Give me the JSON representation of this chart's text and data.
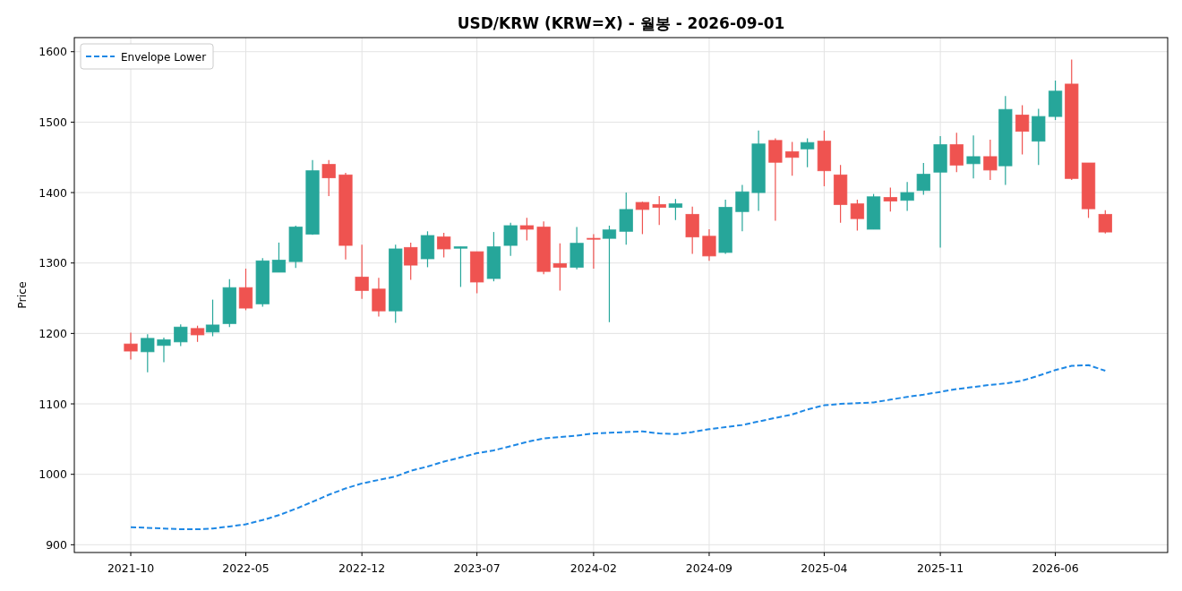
{
  "chart_data": {
    "type": "candlestick",
    "title": "USD/KRW (KRW=X) - 월봉 - 2026-09-01",
    "ylabel": "Price",
    "x": [
      "2021-10",
      "2021-11",
      "2021-12",
      "2022-01",
      "2022-02",
      "2022-03",
      "2022-04",
      "2022-05",
      "2022-06",
      "2022-07",
      "2022-08",
      "2022-09",
      "2022-10",
      "2022-11",
      "2022-12",
      "2023-01",
      "2023-02",
      "2023-03",
      "2023-04",
      "2023-05",
      "2023-06",
      "2023-07",
      "2023-08",
      "2023-09",
      "2023-10",
      "2023-11",
      "2023-12",
      "2024-01",
      "2024-02",
      "2024-03",
      "2024-04",
      "2024-05",
      "2024-06",
      "2024-07",
      "2024-08",
      "2024-09",
      "2024-10",
      "2024-11",
      "2024-12",
      "2025-01",
      "2025-02",
      "2025-03",
      "2025-04",
      "2025-05",
      "2025-06",
      "2025-07",
      "2025-08",
      "2025-09",
      "2025-10",
      "2025-11",
      "2025-12",
      "2026-01",
      "2026-02",
      "2026-03",
      "2026-04",
      "2026-05",
      "2026-06",
      "2026-07",
      "2026-08",
      "2026-09"
    ],
    "ohlc": [
      [
        1185,
        1201,
        1163,
        1175
      ],
      [
        1174,
        1199,
        1145,
        1193
      ],
      [
        1183,
        1194,
        1159,
        1191
      ],
      [
        1188,
        1213,
        1182,
        1209
      ],
      [
        1207,
        1211,
        1188,
        1198
      ],
      [
        1202,
        1248,
        1196,
        1212
      ],
      [
        1214,
        1277,
        1209,
        1265
      ],
      [
        1265,
        1292,
        1233,
        1236
      ],
      [
        1242,
        1307,
        1238,
        1303
      ],
      [
        1287,
        1329,
        1287,
        1304
      ],
      [
        1302,
        1353,
        1293,
        1351
      ],
      [
        1341,
        1446,
        1340,
        1431
      ],
      [
        1440,
        1446,
        1395,
        1421
      ],
      [
        1425,
        1428,
        1305,
        1325
      ],
      [
        1280,
        1326,
        1249,
        1261
      ],
      [
        1263,
        1279,
        1224,
        1232
      ],
      [
        1232,
        1326,
        1215,
        1320
      ],
      [
        1322,
        1329,
        1276,
        1297
      ],
      [
        1306,
        1345,
        1294,
        1339
      ],
      [
        1337,
        1343,
        1308,
        1320
      ],
      [
        1321,
        1323,
        1266,
        1323
      ],
      [
        1316,
        1316,
        1257,
        1273
      ],
      [
        1278,
        1344,
        1274,
        1323
      ],
      [
        1325,
        1357,
        1310,
        1353
      ],
      [
        1353,
        1364,
        1332,
        1348
      ],
      [
        1351,
        1359,
        1284,
        1288
      ],
      [
        1299,
        1328,
        1261,
        1294
      ],
      [
        1294,
        1351,
        1291,
        1328
      ],
      [
        1335,
        1341,
        1292,
        1334
      ],
      [
        1335,
        1353,
        1216,
        1347
      ],
      [
        1345,
        1400,
        1326,
        1376
      ],
      [
        1386,
        1387,
        1341,
        1376
      ],
      [
        1383,
        1395,
        1354,
        1379
      ],
      [
        1379,
        1391,
        1361,
        1384
      ],
      [
        1369,
        1380,
        1313,
        1337
      ],
      [
        1338,
        1348,
        1303,
        1310
      ],
      [
        1315,
        1390,
        1313,
        1379
      ],
      [
        1373,
        1411,
        1345,
        1401
      ],
      [
        1400,
        1488,
        1374,
        1469
      ],
      [
        1474,
        1477,
        1360,
        1443
      ],
      [
        1458,
        1472,
        1424,
        1450
      ],
      [
        1462,
        1477,
        1436,
        1471
      ],
      [
        1473,
        1488,
        1409,
        1431
      ],
      [
        1425,
        1439,
        1357,
        1383
      ],
      [
        1384,
        1390,
        1346,
        1363
      ],
      [
        1348,
        1398,
        1348,
        1394
      ],
      [
        1393,
        1407,
        1373,
        1388
      ],
      [
        1389,
        1415,
        1374,
        1400
      ],
      [
        1403,
        1442,
        1397,
        1426
      ],
      [
        1429,
        1480,
        1322,
        1468
      ],
      [
        1468,
        1485,
        1429,
        1439
      ],
      [
        1441,
        1481,
        1420,
        1451
      ],
      [
        1451,
        1475,
        1418,
        1432
      ],
      [
        1438,
        1537,
        1411,
        1518
      ],
      [
        1510,
        1524,
        1454,
        1487
      ],
      [
        1473,
        1519,
        1439,
        1508
      ],
      [
        1508,
        1559,
        1503,
        1544
      ],
      [
        1554,
        1589,
        1418,
        1420
      ],
      [
        1442,
        1442,
        1364,
        1377
      ],
      [
        1369,
        1375,
        1342,
        1344
      ]
    ],
    "colors": [
      "#ef5350",
      "#26a69a",
      "#26a69a",
      "#26a69a",
      "#ef5350",
      "#26a69a",
      "#26a69a",
      "#ef5350",
      "#26a69a",
      "#26a69a",
      "#26a69a",
      "#26a69a",
      "#ef5350",
      "#ef5350",
      "#ef5350",
      "#ef5350",
      "#26a69a",
      "#ef5350",
      "#26a69a",
      "#ef5350",
      "#26a69a",
      "#ef5350",
      "#26a69a",
      "#26a69a",
      "#ef5350",
      "#ef5350",
      "#ef5350",
      "#26a69a",
      "#ef5350",
      "#26a69a",
      "#26a69a",
      "#ef5350",
      "#ef5350",
      "#26a69a",
      "#ef5350",
      "#ef5350",
      "#26a69a",
      "#26a69a",
      "#26a69a",
      "#ef5350",
      "#ef5350",
      "#26a69a",
      "#ef5350",
      "#ef5350",
      "#ef5350",
      "#26a69a",
      "#ef5350",
      "#26a69a",
      "#26a69a",
      "#26a69a",
      "#ef5350",
      "#26a69a",
      "#ef5350",
      "#26a69a",
      "#ef5350",
      "#26a69a",
      "#26a69a",
      "#ef5350",
      "#ef5350",
      "#ef5350"
    ],
    "series": [
      {
        "name": "Envelope Lower",
        "type": "line",
        "color": "#1e88e5",
        "line_style": "dashed",
        "values": [
          925,
          924,
          923,
          922,
          922,
          923,
          926,
          929,
          935,
          942,
          951,
          961,
          971,
          980,
          987,
          992,
          997,
          1005,
          1011,
          1018,
          1024,
          1030,
          1034,
          1040,
          1046,
          1051,
          1053,
          1055,
          1058,
          1059,
          1060,
          1061,
          1058,
          1057,
          1060,
          1064,
          1067,
          1070,
          1075,
          1080,
          1085,
          1092,
          1098,
          1100,
          1101,
          1102,
          1106,
          1110,
          1113,
          1117,
          1121,
          1124,
          1127,
          1129,
          1133,
          1140,
          1148,
          1154,
          1155,
          1147
        ]
      }
    ],
    "xlim": [
      "2021-06-19",
      "2026-12-25"
    ],
    "xticks": [
      "2021-10",
      "2022-05",
      "2022-12",
      "2023-07",
      "2024-02",
      "2024-09",
      "2025-04",
      "2025-11",
      "2026-06"
    ],
    "ylim": [
      889,
      1620
    ],
    "yticks": [
      900,
      1000,
      1100,
      1200,
      1300,
      1400,
      1500,
      1600
    ],
    "grid": true,
    "legend": "top left",
    "marker": "none"
  }
}
